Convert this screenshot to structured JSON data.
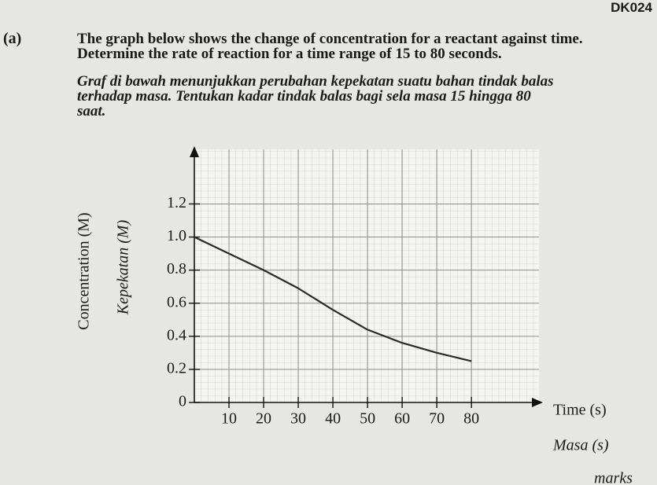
{
  "header": {
    "code": "DK024"
  },
  "question": {
    "label": "(a)",
    "english_lines": [
      "The graph below shows the change of concentration for a reactant against time.",
      "Determine the rate of reaction for a time range of 15 to 80 seconds."
    ],
    "malay_lines": [
      "Graf di bawah menunjukkan perubahan kepekatan suatu bahan tindak balas",
      "terhadap masa. Tentukan kadar tindak balas bagi sela masa 15 hingga 80",
      "saat."
    ]
  },
  "chart_data": {
    "type": "line",
    "x_label": "Time (s)",
    "x_label_alt": "Masa (s)",
    "y_label": "Concentration (M)",
    "y_label_alt": "Kepekatan (M)",
    "x": [
      0,
      10,
      20,
      30,
      40,
      50,
      60,
      70,
      80
    ],
    "series": [
      {
        "color": "#2a2a2a",
        "values": [
          1.0,
          0.9,
          0.8,
          0.69,
          0.56,
          0.44,
          0.36,
          0.3,
          0.25
        ]
      }
    ],
    "xlim": [
      0,
      99.5
    ],
    "ylim": [
      0,
      1.53
    ],
    "xticks": [
      10,
      20,
      30,
      40,
      50,
      60,
      70,
      80
    ],
    "yticks": [
      0,
      {
        "value": 0.2,
        "label": "0.2"
      },
      {
        "value": 0.4,
        "label": "0.4"
      },
      {
        "value": 0.6,
        "label": "0.6"
      },
      {
        "value": 0.8,
        "label": "0.8"
      },
      {
        "value": 1.0,
        "label": "1.0"
      },
      {
        "value": 1.2,
        "label": "1.2"
      }
    ],
    "grid": true
  },
  "footer": {
    "marks": "marks"
  }
}
